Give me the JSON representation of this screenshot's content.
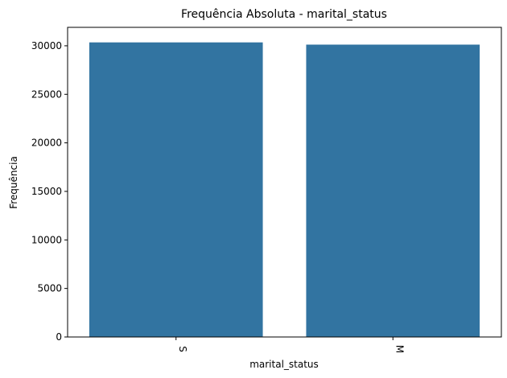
{
  "chart_data": {
    "type": "bar",
    "title": "Frequência Absoluta - marital_status",
    "xlabel": "marital_status",
    "ylabel": "Frequência",
    "categories": [
      "S",
      "M"
    ],
    "values": [
      30350,
      30120
    ],
    "ylim": [
      0,
      31900
    ],
    "yticks": [
      0,
      5000,
      10000,
      15000,
      20000,
      25000,
      30000
    ],
    "bar_color": "#3274a1",
    "grid": false,
    "legend": "none"
  }
}
